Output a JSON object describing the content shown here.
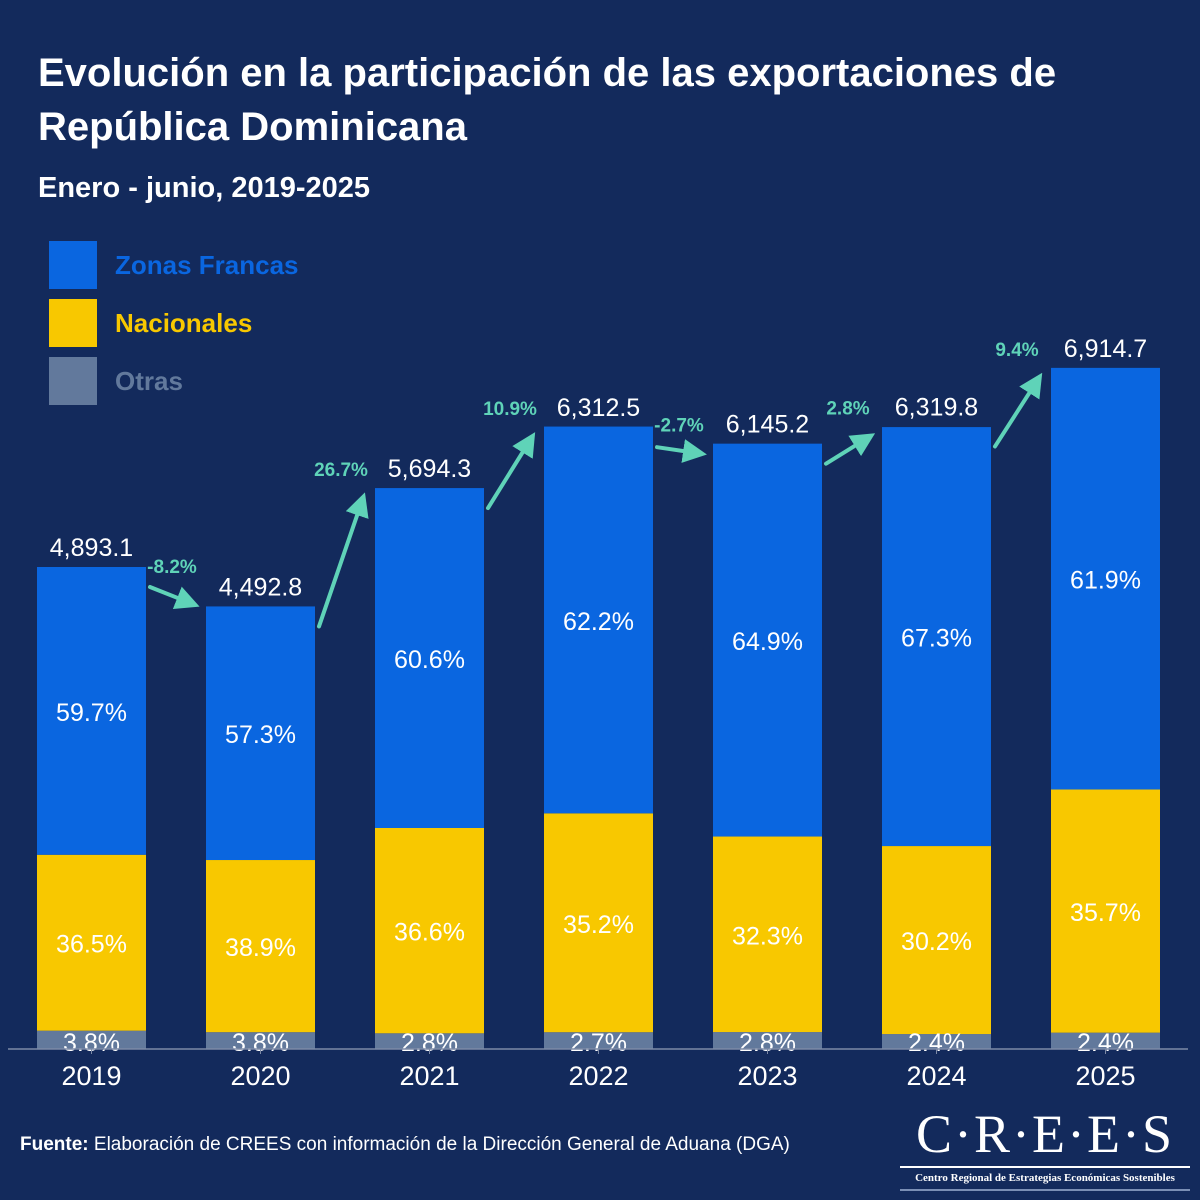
{
  "header": {
    "title": "Evolución en la participación de las exportaciones de República Dominicana",
    "subtitle": "Enero - junio, 2019-2025"
  },
  "colors": {
    "background": "#132a5c",
    "zonas_francas": "#0a66e0",
    "nacionales": "#f8c800",
    "otras": "#62799c",
    "growth": "#5fd3b8",
    "text": "#ffffff"
  },
  "legend": [
    {
      "label": "Zonas Francas",
      "color": "#0a66e0",
      "text_color": "#0a66e0"
    },
    {
      "label": "Nacionales",
      "color": "#f8c800",
      "text_color": "#f8c800"
    },
    {
      "label": "Otras",
      "color": "#62799c",
      "text_color": "#62799c"
    }
  ],
  "chart_data": {
    "type": "bar",
    "stacked": true,
    "title": "Evolución en la participación de las exportaciones de República Dominicana",
    "subtitle": "Enero - junio, 2019-2025",
    "xlabel": "",
    "ylabel": "",
    "categories": [
      "2019",
      "2020",
      "2021",
      "2022",
      "2023",
      "2024",
      "2025"
    ],
    "totals": [
      4893.1,
      4492.8,
      5694.3,
      6312.5,
      6145.2,
      6319.8,
      6914.7
    ],
    "total_labels": [
      "4,893.1",
      "4,492.8",
      "5,694.3",
      "6,312.5",
      "6,145.2",
      "6,319.8",
      "6,914.7"
    ],
    "series": [
      {
        "name": "Otras",
        "share_pct": [
          3.8,
          3.8,
          2.8,
          2.7,
          2.8,
          2.4,
          2.4
        ],
        "labels": [
          "3.8%",
          "3.8%",
          "2.8%",
          "2.7%",
          "2.8%",
          "2.4%",
          "2.4%"
        ]
      },
      {
        "name": "Nacionales",
        "share_pct": [
          36.5,
          38.9,
          36.6,
          35.2,
          32.3,
          30.2,
          35.7
        ],
        "labels": [
          "36.5%",
          "38.9%",
          "36.6%",
          "35.2%",
          "32.3%",
          "30.2%",
          "35.7%"
        ]
      },
      {
        "name": "Zonas Francas",
        "share_pct": [
          59.7,
          57.3,
          60.6,
          62.2,
          64.9,
          67.3,
          61.9
        ],
        "labels": [
          "59.7%",
          "57.3%",
          "60.6%",
          "62.2%",
          "64.9%",
          "67.3%",
          "61.9%"
        ]
      }
    ],
    "growth": {
      "values": [
        -8.2,
        26.7,
        10.9,
        -2.7,
        2.8,
        9.4
      ],
      "labels": [
        "-8.2%",
        "26.7%",
        "10.9%",
        "-2.7%",
        "2.8%",
        "9.4%"
      ]
    },
    "ylim": [
      0,
      7000
    ],
    "grid": false,
    "legend_position": "top-left"
  },
  "footer": {
    "source_label": "Fuente:",
    "source_text": "Elaboración de CREES con información de la Dirección General de Aduana (DGA)"
  },
  "logo": {
    "name": "C·R·E·E·S",
    "subtitle": "Centro Regional de Estrategias Económicas Sostenibles"
  }
}
